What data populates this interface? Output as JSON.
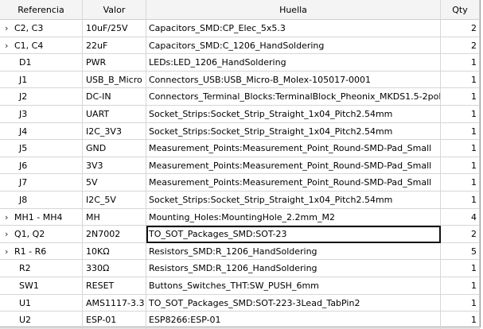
{
  "columns": {
    "reference": "Referencia",
    "value": "Valor",
    "footprint": "Huella",
    "qty": "Qty"
  },
  "rows": [
    {
      "expand": "›",
      "ref": "C2, C3",
      "value": "10uF/25V",
      "footprint": "Capacitors_SMD:CP_Elec_5x5.3",
      "qty": "2"
    },
    {
      "expand": "›",
      "ref": "C1, C4",
      "value": "22uF",
      "footprint": "Capacitors_SMD:C_1206_HandSoldering",
      "qty": "2"
    },
    {
      "expand": "",
      "ref": "D1",
      "value": "PWR",
      "footprint": "LEDs:LED_1206_HandSoldering",
      "qty": "1"
    },
    {
      "expand": "",
      "ref": "J1",
      "value": "USB_B_Micro",
      "footprint": "Connectors_USB:USB_Micro-B_Molex-105017-0001",
      "qty": "1"
    },
    {
      "expand": "",
      "ref": "J2",
      "value": "DC-IN",
      "footprint": "Connectors_Terminal_Blocks:TerminalBlock_Pheonix_MKDS1.5-2pol",
      "qty": "1"
    },
    {
      "expand": "",
      "ref": "J3",
      "value": "UART",
      "footprint": "Socket_Strips:Socket_Strip_Straight_1x04_Pitch2.54mm",
      "qty": "1"
    },
    {
      "expand": "",
      "ref": "J4",
      "value": "I2C_3V3",
      "footprint": "Socket_Strips:Socket_Strip_Straight_1x04_Pitch2.54mm",
      "qty": "1"
    },
    {
      "expand": "",
      "ref": "J5",
      "value": "GND",
      "footprint": "Measurement_Points:Measurement_Point_Round-SMD-Pad_Small",
      "qty": "1"
    },
    {
      "expand": "",
      "ref": "J6",
      "value": "3V3",
      "footprint": "Measurement_Points:Measurement_Point_Round-SMD-Pad_Small",
      "qty": "1"
    },
    {
      "expand": "",
      "ref": "J7",
      "value": "5V",
      "footprint": "Measurement_Points:Measurement_Point_Round-SMD-Pad_Small",
      "qty": "1"
    },
    {
      "expand": "",
      "ref": "J8",
      "value": "I2C_5V",
      "footprint": "Socket_Strips:Socket_Strip_Straight_1x04_Pitch2.54mm",
      "qty": "1"
    },
    {
      "expand": "›",
      "ref": "MH1 - MH4",
      "value": "MH",
      "footprint": "Mounting_Holes:MountingHole_2.2mm_M2",
      "qty": "4"
    },
    {
      "expand": "›",
      "ref": "Q1, Q2",
      "value": "2N7002",
      "footprint": "TO_SOT_Packages_SMD:SOT-23",
      "qty": "2",
      "selected": true
    },
    {
      "expand": "›",
      "ref": "R1 - R6",
      "value": "10KΩ",
      "footprint": "Resistors_SMD:R_1206_HandSoldering",
      "qty": "5"
    },
    {
      "expand": "",
      "ref": "R2",
      "value": "330Ω",
      "footprint": "Resistors_SMD:R_1206_HandSoldering",
      "qty": "1"
    },
    {
      "expand": "",
      "ref": "SW1",
      "value": "RESET",
      "footprint": "Buttons_Switches_THT:SW_PUSH_6mm",
      "qty": "1"
    },
    {
      "expand": "",
      "ref": "U1",
      "value": "AMS1117-3.3",
      "footprint": "TO_SOT_Packages_SMD:SOT-223-3Lead_TabPin2",
      "qty": "1"
    },
    {
      "expand": "",
      "ref": "U2",
      "value": "ESP-01",
      "footprint": "ESP8266:ESP-01",
      "qty": "1"
    }
  ]
}
